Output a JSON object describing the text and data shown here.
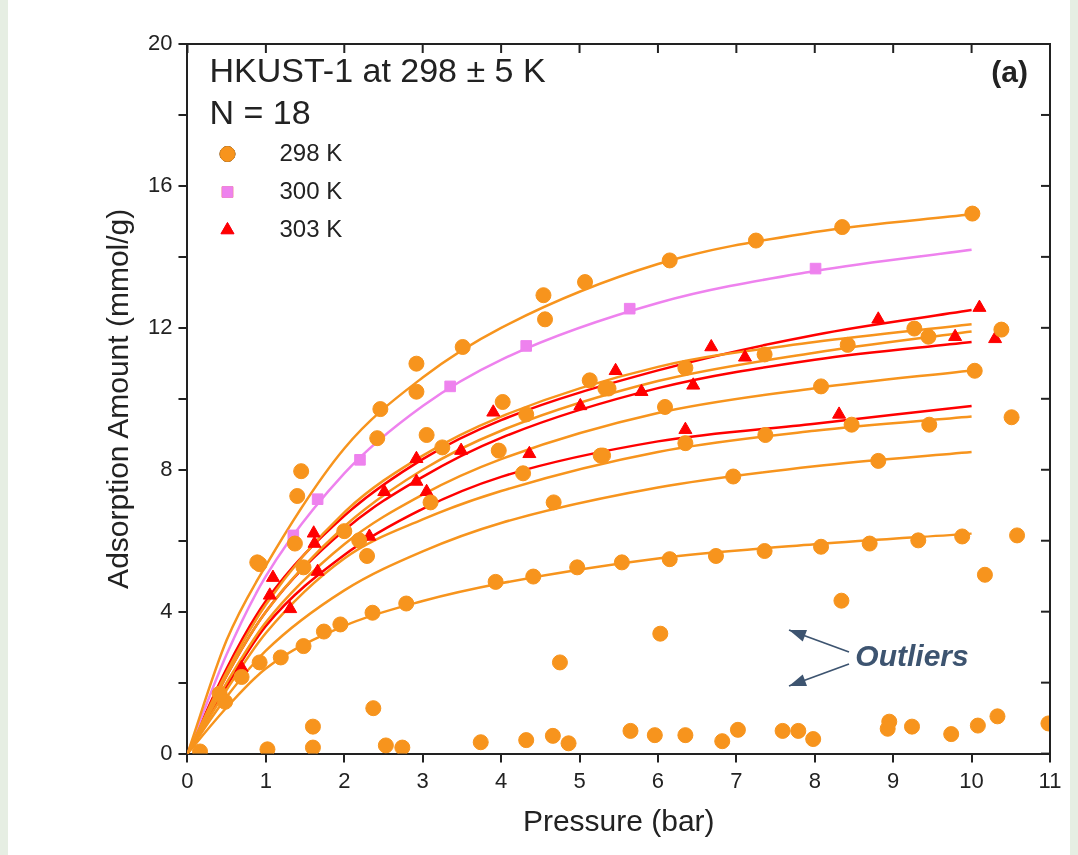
{
  "chart_data": {
    "type": "scatter",
    "title": "HKUST-1 at 298 ± 5 K",
    "subtitle": "N = 18",
    "xlabel": "Pressure (bar)",
    "ylabel": "Adsorption Amount (mmol/g)",
    "annotations": [
      "(a)",
      "Outliers"
    ],
    "xlim": [
      0,
      11
    ],
    "xticks": [
      0,
      1,
      2,
      3,
      4,
      5,
      6,
      7,
      8,
      9,
      10,
      11
    ],
    "ylim": [
      0,
      20
    ],
    "yticks": [
      0,
      {
        "value": 2,
        "label": null
      },
      4,
      {
        "value": 6,
        "label": null
      },
      8,
      {
        "value": 10,
        "label": null
      },
      12,
      {
        "value": 14,
        "label": null
      },
      16,
      {
        "value": 18,
        "label": null
      },
      20
    ],
    "grid": false,
    "legend": "top left",
    "series": [
      {
        "type": "line",
        "color": "#f7941d",
        "x": [
          0,
          0.5,
          1,
          2,
          3,
          4,
          6,
          8,
          10
        ],
        "values": [
          0,
          3.2,
          5.3,
          8.6,
          10.6,
          12,
          13.8,
          14.7,
          15.2
        ]
      },
      {
        "type": "line",
        "color": "#f7941d",
        "x": [
          0,
          0.5,
          1,
          2,
          3,
          4,
          6,
          8,
          10
        ],
        "values": [
          0,
          2.3,
          4.2,
          6.8,
          8.4,
          9.5,
          10.9,
          11.6,
          12.1
        ]
      },
      {
        "type": "line",
        "color": "#f7941d",
        "x": [
          0,
          0.5,
          1,
          2,
          3,
          4,
          6,
          8,
          10
        ],
        "values": [
          0,
          2.2,
          4.0,
          6.4,
          8.0,
          9.1,
          10.5,
          11.3,
          11.9
        ]
      },
      {
        "type": "line",
        "color": "#f7941d",
        "x": [
          0,
          0.5,
          1,
          2,
          3,
          4,
          6,
          8,
          10
        ],
        "values": [
          0,
          2.0,
          3.7,
          5.9,
          7.3,
          8.3,
          9.6,
          10.3,
          10.8
        ]
      },
      {
        "type": "line",
        "color": "#f7941d",
        "x": [
          0,
          0.5,
          1,
          2,
          3,
          4,
          6,
          8,
          10
        ],
        "values": [
          0,
          1.8,
          3.4,
          5.5,
          6.6,
          7.4,
          8.5,
          9.1,
          9.5
        ]
      },
      {
        "type": "line",
        "color": "#f7941d",
        "x": [
          0,
          0.5,
          1,
          2,
          3,
          4,
          6,
          8,
          10
        ],
        "values": [
          0,
          1.6,
          2.9,
          4.6,
          5.7,
          6.5,
          7.5,
          8.1,
          8.5
        ]
      },
      {
        "type": "line",
        "color": "#f7941d",
        "x": [
          0,
          0.5,
          1,
          2,
          3,
          4,
          6,
          8,
          10
        ],
        "values": [
          0,
          1.3,
          2.4,
          3.6,
          4.3,
          4.8,
          5.5,
          5.9,
          6.2
        ]
      },
      {
        "type": "line",
        "color": "#ee82ee",
        "x": [
          0,
          0.5,
          1,
          2,
          3,
          4,
          6,
          8,
          10
        ],
        "values": [
          0,
          2.8,
          5.0,
          7.9,
          9.8,
          11.1,
          12.7,
          13.6,
          14.2
        ]
      },
      {
        "type": "line",
        "color": "#ff0000",
        "x": [
          0,
          0.5,
          1,
          2,
          3,
          4,
          6,
          8,
          10
        ],
        "values": [
          0,
          2.4,
          4.3,
          6.7,
          8.3,
          9.4,
          10.8,
          11.8,
          12.5
        ]
      },
      {
        "type": "line",
        "color": "#ff0000",
        "x": [
          0,
          0.5,
          1,
          2,
          3,
          4,
          6,
          8,
          10
        ],
        "values": [
          0,
          2.2,
          4.0,
          6.3,
          7.8,
          8.9,
          10.3,
          11.1,
          11.6
        ]
      },
      {
        "type": "line",
        "color": "#ff0000",
        "x": [
          0,
          0.5,
          1,
          2,
          3,
          4,
          6,
          8,
          10
        ],
        "values": [
          0,
          1.9,
          3.6,
          5.6,
          6.9,
          7.8,
          8.8,
          9.3,
          9.8
        ]
      },
      {
        "type": "scatter",
        "name": "298 K",
        "color": "#f7941d",
        "marker": "circle",
        "x": [
          0.92,
          1.4,
          1.45,
          2.46,
          2.92,
          2.92,
          3.51,
          4.54,
          4.56,
          5.07,
          6.15,
          7.25,
          8.35,
          10.01,
          9.27,
          9.45,
          10.38,
          8.42,
          7.36,
          6.35,
          5.37,
          10.04,
          8.08,
          6.09,
          10.51,
          9.46,
          8.47,
          7.37,
          6.35,
          5.3,
          8.81,
          6.96,
          10.58,
          9.88,
          9.32,
          8.7,
          8.08,
          7.36,
          6.74,
          6.15,
          5.54,
          10.17,
          8.34,
          0.89,
          2.42,
          3.05,
          3.25,
          4.02,
          4.32,
          3.97,
          5.13,
          5.33,
          5.27,
          4.28,
          3.1,
          2.0,
          2.19,
          2.29,
          4.67,
          4.97,
          4.41,
          3.93,
          2.79,
          2.36,
          1.48,
          1.37,
          1.19,
          0.92,
          1.48,
          1.74,
          1.95,
          0.69,
          0.48,
          0.41,
          2.37,
          4.75,
          6.03,
          1.6,
          1.6,
          1.02,
          2.53,
          2.74,
          3.74,
          4.32,
          4.66,
          4.86,
          5.65,
          5.96,
          6.35,
          6.82,
          7.02,
          7.59,
          7.79,
          7.98,
          8.95,
          8.93,
          9.24,
          9.74,
          10.08,
          10.33,
          10.98,
          0.16
        ],
        "values": [
          5.34,
          7.26,
          7.96,
          9.71,
          10.99,
          10.2,
          11.46,
          12.92,
          12.24,
          13.29,
          13.9,
          14.46,
          14.84,
          15.22,
          11.98,
          11.75,
          11.95,
          11.52,
          11.25,
          10.87,
          10.29,
          10.79,
          10.35,
          9.77,
          9.48,
          9.27,
          9.27,
          8.98,
          8.75,
          8.4,
          8.25,
          7.81,
          6.15,
          6.12,
          6.01,
          5.92,
          5.83,
          5.71,
          5.57,
          5.48,
          5.39,
          5.04,
          4.31,
          5.39,
          8.89,
          8.98,
          8.63,
          9.91,
          9.56,
          8.54,
          10.52,
          10.29,
          8.4,
          7.9,
          7.08,
          6.27,
          6.01,
          5.57,
          7.08,
          5.25,
          4.99,
          4.84,
          4.23,
          3.97,
          5.25,
          5.92,
          2.71,
          2.57,
          3.03,
          3.44,
          3.64,
          2.16,
          1.46,
          1.69,
          1.28,
          2.57,
          3.38,
          0.76,
          0.17,
          0.12,
          0.23,
          0.17,
          0.32,
          0.38,
          0.5,
          0.29,
          0.64,
          0.52,
          0.52,
          0.35,
          0.67,
          0.64,
          0.64,
          0.41,
          0.9,
          0.7,
          0.76,
          0.55,
          0.79,
          1.05,
          0.85,
          0.06
        ]
      },
      {
        "type": "scatter",
        "name": "300 K",
        "color": "#ee82ee",
        "marker": "square",
        "x": [
          1.35,
          1.66,
          2.2,
          3.35,
          4.32,
          5.64,
          8.01
        ],
        "values": [
          6.15,
          7.17,
          8.28,
          10.35,
          11.49,
          12.54,
          13.67
        ]
      },
      {
        "type": "scatter",
        "name": "303 K",
        "color": "#ff0000",
        "marker": "triangle",
        "x": [
          0.69,
          1.61,
          1.62,
          1.09,
          1.31,
          1.66,
          2.32,
          2.51,
          2.92,
          2.92,
          3.05,
          3.49,
          3.9,
          4.36,
          5.46,
          5.01,
          5.79,
          6.45,
          6.68,
          7.11,
          6.35,
          8.31,
          8.81,
          9.79,
          10.1,
          10.3,
          1.05
        ],
        "values": [
          2.42,
          6.21,
          5.92,
          4.96,
          4.08,
          5.13,
          6.12,
          7.38,
          8.31,
          7.67,
          7.38,
          8.54,
          9.62,
          8.45,
          10.79,
          9.8,
          10.2,
          10.38,
          11.46,
          11.17,
          9.13,
          9.56,
          12.24,
          11.75,
          12.57,
          11.69,
          4.46
        ]
      }
    ]
  }
}
